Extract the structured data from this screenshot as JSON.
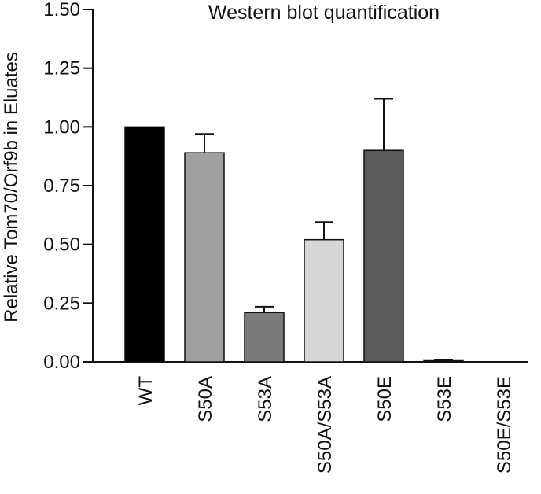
{
  "chart_data": {
    "type": "bar",
    "title": "Western blot quantification",
    "xlabel": "",
    "ylabel": "Relative Tom70/Orf9b in Eluates",
    "ylim": [
      0,
      1.5
    ],
    "yticks": [
      "0.00",
      "0.25",
      "0.50",
      "0.75",
      "1.00",
      "1.25",
      "1.50"
    ],
    "categories": [
      "WT",
      "S50A",
      "S53A",
      "S50A/S53A",
      "S50E",
      "S53E",
      "S50E/S53E"
    ],
    "values": [
      1.0,
      0.89,
      0.21,
      0.52,
      0.9,
      0.005,
      0.0
    ],
    "errors": [
      0.0,
      0.08,
      0.025,
      0.075,
      0.22,
      0.004,
      0.0
    ],
    "colors": [
      "#000000",
      "#a0a0a0",
      "#7a7a7a",
      "#d6d6d6",
      "#5a5a5a",
      "#808080",
      "#808080"
    ],
    "grid": false,
    "legend": "none"
  }
}
